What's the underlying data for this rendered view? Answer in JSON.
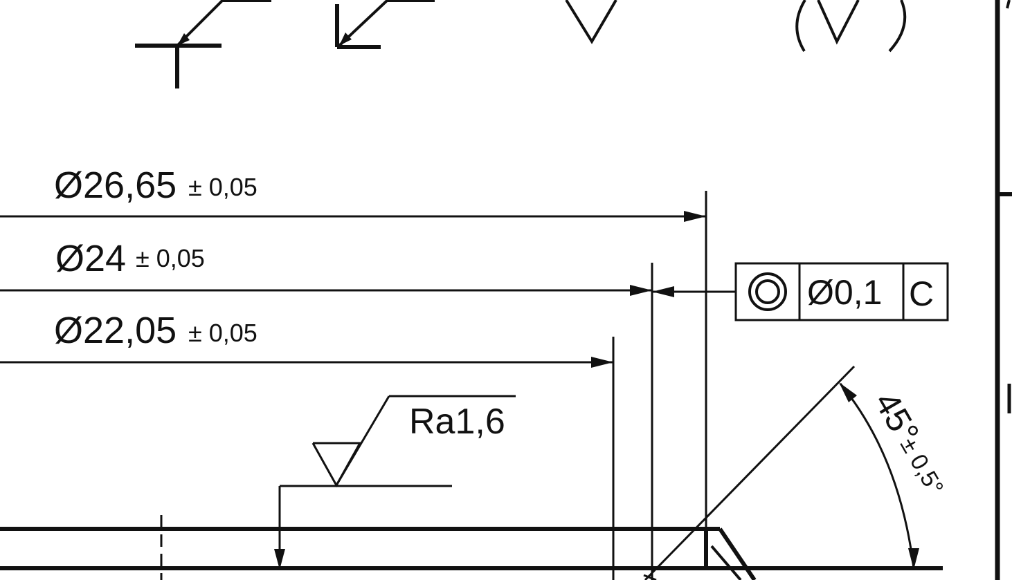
{
  "dimensions": {
    "d1": {
      "symbol": "Ø",
      "value": "26,65",
      "tolerance": "± 0,05"
    },
    "d2": {
      "symbol": "Ø",
      "value": "24",
      "tolerance": "± 0,05"
    },
    "d3": {
      "symbol": "Ø",
      "value": "22,05",
      "tolerance": "± 0,05"
    }
  },
  "feature_control_frame": {
    "characteristic_icon": "concentricity-icon",
    "tolerance": "Ø0,1",
    "datum": "C"
  },
  "surface_finish": {
    "label": "Ra1,6"
  },
  "angle": {
    "value": "45°",
    "tolerance": "± 0,5°"
  },
  "colors": {
    "ink": "#111111",
    "paper": "#ffffff"
  }
}
